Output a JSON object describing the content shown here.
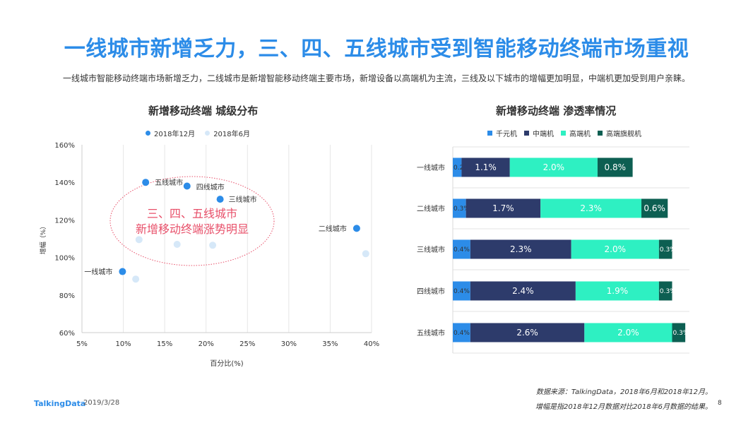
{
  "page": {
    "title": "一线城市新增乏力，三、四、五线城市受到智能移动终端市场重视",
    "subtitle": "一线城市智能移动终端市场新增乏力，二线城市是新增智能移动终端主要市场，新增设备以高端机为主流，三线及以下城市的增幅更加明显，中端机更加受到用户亲睐。",
    "footer": {
      "logo": "TalkingData",
      "date": "2019/3/28",
      "source_line1": "数据来源：TalkingData，2018年6月和2018年12月。",
      "source_line2": "增幅是指2018年12月数据对比2018年6月数据的结果。",
      "page_number": "8"
    }
  },
  "chart_data": [
    {
      "type": "scatter",
      "title": "新增移动终端  城级分布",
      "xlabel": "百分比(%)",
      "ylabel": "增幅（%）",
      "xlim": [
        5,
        40
      ],
      "ylim": [
        60,
        160
      ],
      "x_ticks": [
        "5%",
        "10%",
        "15%",
        "20%",
        "25%",
        "30%",
        "35%",
        "40%"
      ],
      "y_ticks": [
        "60%",
        "80%",
        "100%",
        "120%",
        "140%",
        "160%"
      ],
      "grid": "vertical",
      "legend_position": "top",
      "annotation": [
        "三、四、五线城市",
        "新增移动终端涨势明显"
      ],
      "series": [
        {
          "name": "2018年12月",
          "color": "#2c8ce8",
          "points": [
            {
              "label": "一线城市",
              "x": 9.9,
              "y": 92.5
            },
            {
              "label": "二线城市",
              "x": 38.2,
              "y": 115.5
            },
            {
              "label": "三线城市",
              "x": 21.7,
              "y": 131
            },
            {
              "label": "四线城市",
              "x": 17.7,
              "y": 138
            },
            {
              "label": "五线城市",
              "x": 12.7,
              "y": 140
            }
          ]
        },
        {
          "name": "2018年6月",
          "color": "#d6e8f8",
          "points": [
            {
              "x": 11.5,
              "y": 88.5
            },
            {
              "x": 11.9,
              "y": 109.5
            },
            {
              "x": 16.5,
              "y": 107
            },
            {
              "x": 20.8,
              "y": 106.5
            },
            {
              "x": 39.3,
              "y": 102
            }
          ]
        }
      ]
    },
    {
      "type": "bar",
      "orientation": "horizontal",
      "stacked": true,
      "title": "新增移动终端  渗透率情况",
      "legend_position": "top",
      "categories": [
        "一线城市",
        "二线城市",
        "三线城市",
        "四线城市",
        "五线城市"
      ],
      "series": [
        {
          "name": "千元机",
          "color": "#2c8ce8",
          "values": [
            0.2,
            0.3,
            0.4,
            0.4,
            0.4
          ],
          "labels": [
            "0.2%",
            "0.3%",
            "0.4%",
            "0.4%",
            "0.4%"
          ]
        },
        {
          "name": "中端机",
          "color": "#2d3b6b",
          "values": [
            1.1,
            1.7,
            2.3,
            2.4,
            2.6
          ],
          "labels": [
            "1.1%",
            "1.7%",
            "2.3%",
            "2.4%",
            "2.6%"
          ]
        },
        {
          "name": "高端机",
          "color": "#2ef0c2",
          "values": [
            2.0,
            2.3,
            2.0,
            1.9,
            2.0
          ],
          "labels": [
            "2.0%",
            "2.3%",
            "2.0%",
            "1.9%",
            "2.0%"
          ]
        },
        {
          "name": "高端旗舰机",
          "color": "#0d5f52",
          "values": [
            0.8,
            0.6,
            0.3,
            0.3,
            0.3
          ],
          "labels": [
            "0.8%",
            "0.6%",
            "0.3%",
            "0.3%",
            "0.3%"
          ]
        }
      ]
    }
  ]
}
